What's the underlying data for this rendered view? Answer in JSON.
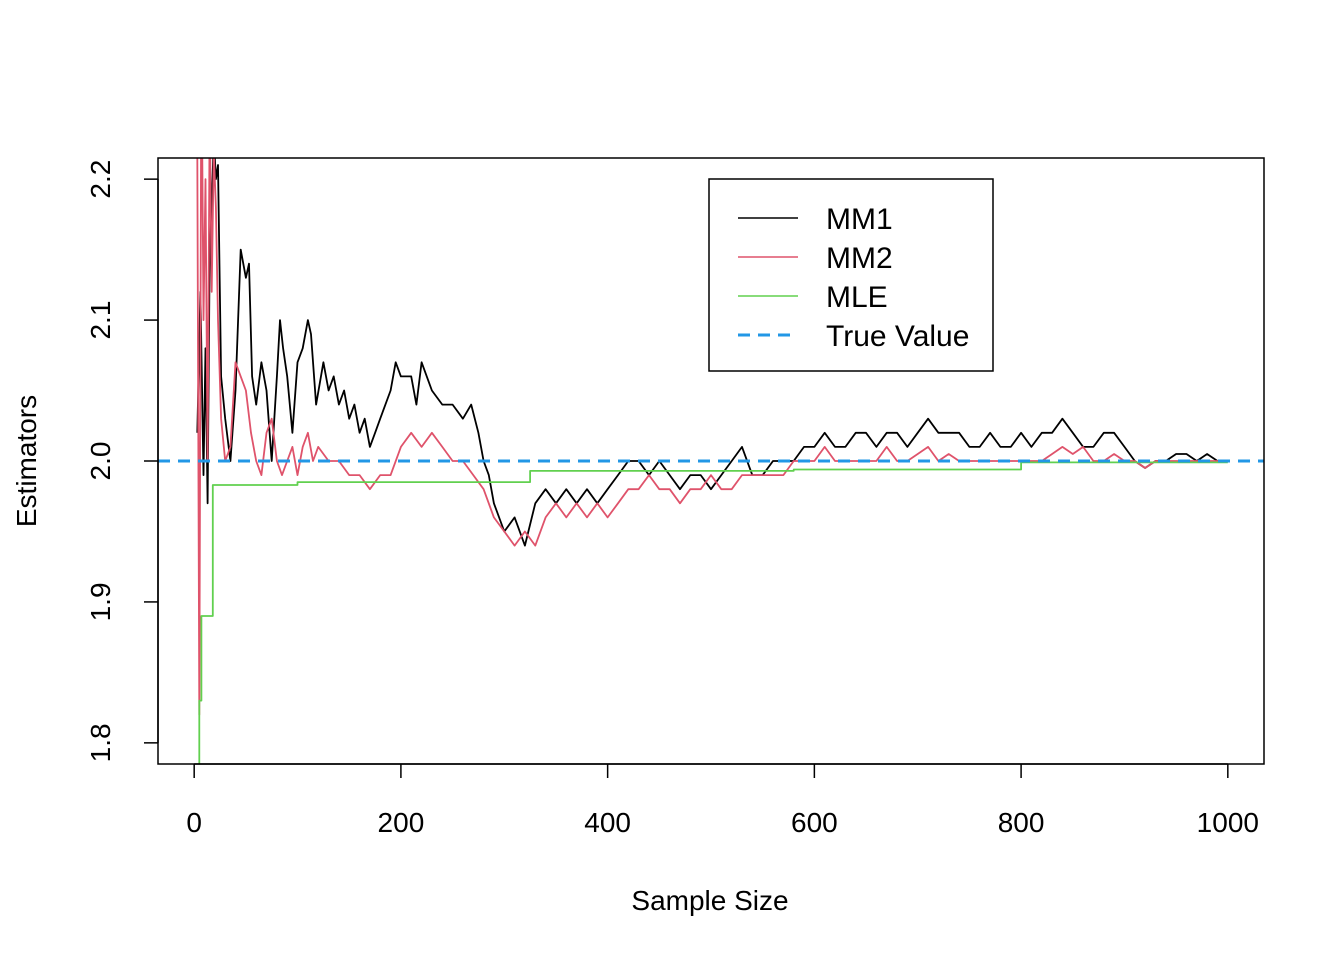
{
  "chart_data": {
    "type": "line",
    "title": "",
    "xlabel": "Sample Size",
    "ylabel": "Estimators",
    "xlim": [
      -35,
      1035
    ],
    "ylim": [
      1.785,
      2.215
    ],
    "x_ticks": [
      0,
      200,
      400,
      600,
      800,
      1000
    ],
    "y_ticks": [
      1.8,
      1.9,
      2.0,
      2.1,
      2.2
    ],
    "x_tick_labels": [
      "0",
      "200",
      "400",
      "600",
      "800",
      "1000"
    ],
    "y_tick_labels": [
      "1.8",
      "1.9",
      "2.0",
      "2.1",
      "2.2"
    ],
    "grid": false,
    "legend_position": "top-right",
    "reference_line": {
      "name": "True Value",
      "y": 2.0,
      "color": "#2297e6",
      "style": "dashed"
    },
    "series": [
      {
        "name": "MM1",
        "color": "#000000",
        "x": [
          3,
          6,
          9,
          11,
          13,
          15,
          17,
          19,
          21,
          23,
          26,
          30,
          35,
          40,
          45,
          50,
          53,
          56,
          60,
          65,
          70,
          75,
          80,
          83,
          86,
          90,
          95,
          100,
          105,
          110,
          113,
          118,
          125,
          130,
          135,
          140,
          145,
          150,
          155,
          160,
          165,
          170,
          175,
          180,
          190,
          195,
          200,
          210,
          215,
          220,
          230,
          240,
          250,
          260,
          268,
          275,
          280,
          285,
          290,
          300,
          310,
          320,
          330,
          340,
          350,
          360,
          370,
          380,
          390,
          400,
          410,
          420,
          430,
          440,
          450,
          460,
          470,
          480,
          490,
          500,
          510,
          520,
          530,
          540,
          550,
          560,
          570,
          580,
          590,
          600,
          610,
          620,
          630,
          640,
          650,
          660,
          670,
          680,
          690,
          700,
          710,
          720,
          730,
          740,
          750,
          760,
          770,
          780,
          790,
          800,
          810,
          820,
          830,
          840,
          850,
          860,
          870,
          880,
          890,
          900,
          910,
          920,
          930,
          940,
          950,
          960,
          970,
          980,
          990,
          1000
        ],
        "values": [
          2.02,
          2.12,
          1.99,
          2.08,
          1.97,
          2.15,
          2.18,
          2.23,
          2.2,
          2.21,
          2.06,
          2.03,
          2.0,
          2.05,
          2.15,
          2.13,
          2.14,
          2.06,
          2.04,
          2.07,
          2.05,
          2.0,
          2.06,
          2.1,
          2.08,
          2.06,
          2.02,
          2.07,
          2.08,
          2.1,
          2.09,
          2.04,
          2.07,
          2.05,
          2.06,
          2.04,
          2.05,
          2.03,
          2.04,
          2.02,
          2.03,
          2.01,
          2.02,
          2.03,
          2.05,
          2.07,
          2.06,
          2.06,
          2.04,
          2.07,
          2.05,
          2.04,
          2.04,
          2.03,
          2.04,
          2.02,
          2.0,
          1.99,
          1.97,
          1.95,
          1.96,
          1.94,
          1.97,
          1.98,
          1.97,
          1.98,
          1.97,
          1.98,
          1.97,
          1.98,
          1.99,
          2.0,
          2.0,
          1.99,
          2.0,
          1.99,
          1.98,
          1.99,
          1.99,
          1.98,
          1.99,
          2.0,
          2.01,
          1.99,
          1.99,
          2.0,
          2.0,
          2.0,
          2.01,
          2.01,
          2.02,
          2.01,
          2.01,
          2.02,
          2.02,
          2.01,
          2.02,
          2.02,
          2.01,
          2.02,
          2.03,
          2.02,
          2.02,
          2.02,
          2.01,
          2.01,
          2.02,
          2.01,
          2.01,
          2.02,
          2.01,
          2.02,
          2.02,
          2.03,
          2.02,
          2.01,
          2.01,
          2.02,
          2.02,
          2.01,
          2.0,
          1.995,
          2.0,
          2.0,
          2.005,
          2.005,
          2.0,
          2.005,
          2.0,
          2.0
        ]
      },
      {
        "name": "MM2",
        "color": "#df536b",
        "x": [
          3,
          5,
          7,
          9,
          11,
          13,
          15,
          17,
          19,
          21,
          23,
          26,
          30,
          35,
          40,
          45,
          50,
          55,
          60,
          65,
          70,
          75,
          80,
          85,
          90,
          95,
          100,
          105,
          110,
          115,
          120,
          130,
          140,
          150,
          160,
          170,
          180,
          190,
          200,
          210,
          220,
          230,
          240,
          250,
          260,
          270,
          280,
          290,
          300,
          310,
          320,
          330,
          340,
          350,
          360,
          370,
          380,
          390,
          400,
          410,
          420,
          430,
          440,
          450,
          460,
          470,
          480,
          490,
          500,
          510,
          520,
          530,
          540,
          550,
          560,
          570,
          580,
          590,
          600,
          610,
          620,
          630,
          640,
          650,
          660,
          670,
          680,
          690,
          700,
          710,
          720,
          730,
          740,
          750,
          760,
          770,
          780,
          790,
          800,
          810,
          820,
          830,
          840,
          850,
          860,
          870,
          880,
          890,
          900,
          910,
          920,
          930,
          940,
          950,
          960,
          970,
          980,
          990,
          1000
        ],
        "values": [
          2.22,
          1.82,
          2.3,
          2.1,
          2.2,
          2.0,
          2.25,
          2.12,
          2.22,
          2.18,
          2.1,
          2.03,
          2.0,
          2.01,
          2.07,
          2.06,
          2.05,
          2.02,
          2.0,
          1.99,
          2.02,
          2.03,
          2.0,
          1.99,
          2.0,
          2.01,
          1.99,
          2.01,
          2.02,
          2.0,
          2.01,
          2.0,
          2.0,
          1.99,
          1.99,
          1.98,
          1.99,
          1.99,
          2.01,
          2.02,
          2.01,
          2.02,
          2.01,
          2.0,
          2.0,
          1.99,
          1.98,
          1.96,
          1.95,
          1.94,
          1.95,
          1.94,
          1.96,
          1.97,
          1.96,
          1.97,
          1.96,
          1.97,
          1.96,
          1.97,
          1.98,
          1.98,
          1.99,
          1.98,
          1.98,
          1.97,
          1.98,
          1.98,
          1.99,
          1.98,
          1.98,
          1.99,
          1.99,
          1.99,
          1.99,
          1.99,
          2.0,
          2.0,
          2.0,
          2.01,
          2.0,
          2.0,
          2.0,
          2.0,
          2.0,
          2.01,
          2.0,
          2.0,
          2.005,
          2.01,
          2.0,
          2.005,
          2.0,
          2.0,
          2.0,
          2.0,
          2.0,
          2.0,
          2.0,
          2.0,
          2.0,
          2.005,
          2.01,
          2.005,
          2.01,
          2.0,
          2.0,
          2.005,
          2.0,
          2.0,
          1.995,
          2.0,
          2.0,
          2.0,
          2.0,
          2.0,
          2.0,
          2.0,
          2.0
        ]
      },
      {
        "name": "MLE",
        "color": "#61d04f",
        "step": true,
        "x": [
          3,
          5,
          7,
          16,
          18,
          20,
          40,
          100,
          150,
          200,
          300,
          320,
          325,
          500,
          580,
          600,
          780,
          800,
          1000
        ],
        "values": [
          1.78,
          1.83,
          1.89,
          1.89,
          1.983,
          1.983,
          1.983,
          1.985,
          1.985,
          1.985,
          1.985,
          1.985,
          1.993,
          1.993,
          1.994,
          1.994,
          1.994,
          1.999,
          1.999
        ]
      }
    ]
  }
}
